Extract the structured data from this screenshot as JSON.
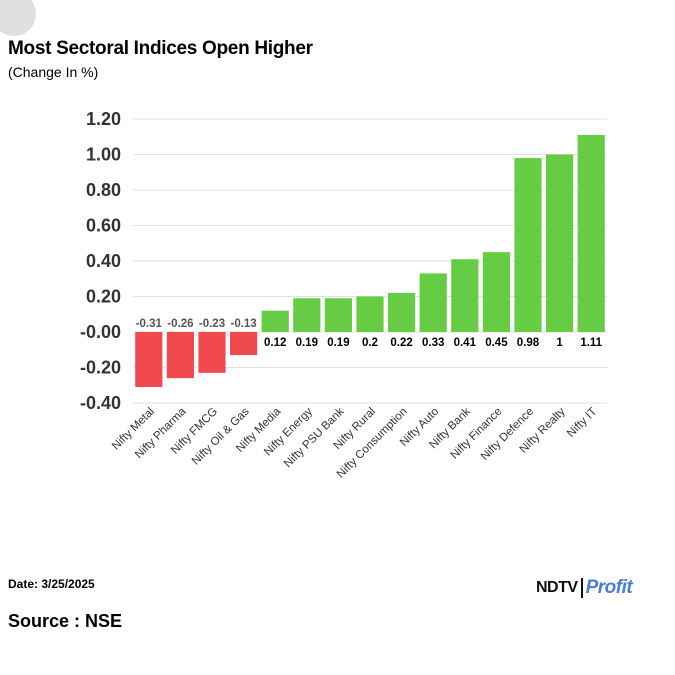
{
  "header": {
    "title": "Most Sectoral Indices Open Higher",
    "subtitle": "(Change In %)"
  },
  "footer": {
    "date": "Date: 3/25/2025",
    "source": "Source : NSE",
    "logo_left": "NDTV",
    "logo_right": "Profit"
  },
  "colors": {
    "positive": "#66cc44",
    "negative": "#f04a4e",
    "grid": "#e0e0e0"
  },
  "chart_data": {
    "type": "bar",
    "title": "Most Sectoral Indices Open Higher",
    "subtitle": "(Change In %)",
    "xlabel": "",
    "ylabel": "",
    "ylim": [
      -0.4,
      1.2
    ],
    "yticks": [
      1.2,
      1.0,
      0.8,
      0.6,
      0.4,
      0.2,
      0.0,
      -0.2,
      -0.4
    ],
    "ytick_labels": [
      "1.20",
      "1.00",
      "0.80",
      "0.60",
      "0.40",
      "0.20",
      "-0.00",
      "-0.20",
      "-0.40"
    ],
    "grid": true,
    "categories": [
      "Nifty Metal",
      "Nifty Pharma",
      "Nifty FMCG",
      "Nifty Oil & Gas",
      "Nifty Media",
      "Nifty Energy",
      "Nifty PSU Bank",
      "Nifty Rural",
      "Nifty Consumption",
      "Nifty Auto",
      "Nifty Bank",
      "Nifty Finance",
      "Nifty Defence",
      "Nifty Realty",
      "Nifty IT"
    ],
    "values": [
      -0.31,
      -0.26,
      -0.23,
      -0.13,
      0.12,
      0.19,
      0.19,
      0.2,
      0.22,
      0.33,
      0.41,
      0.45,
      0.98,
      1,
      1.11
    ],
    "value_labels": [
      "-0.31",
      "-0.26",
      "-0.23",
      "-0.13",
      "0.12",
      "0.19",
      "0.19",
      "0.2",
      "0.22",
      "0.33",
      "0.41",
      "0.45",
      "0.98",
      "1",
      "1.11"
    ]
  }
}
